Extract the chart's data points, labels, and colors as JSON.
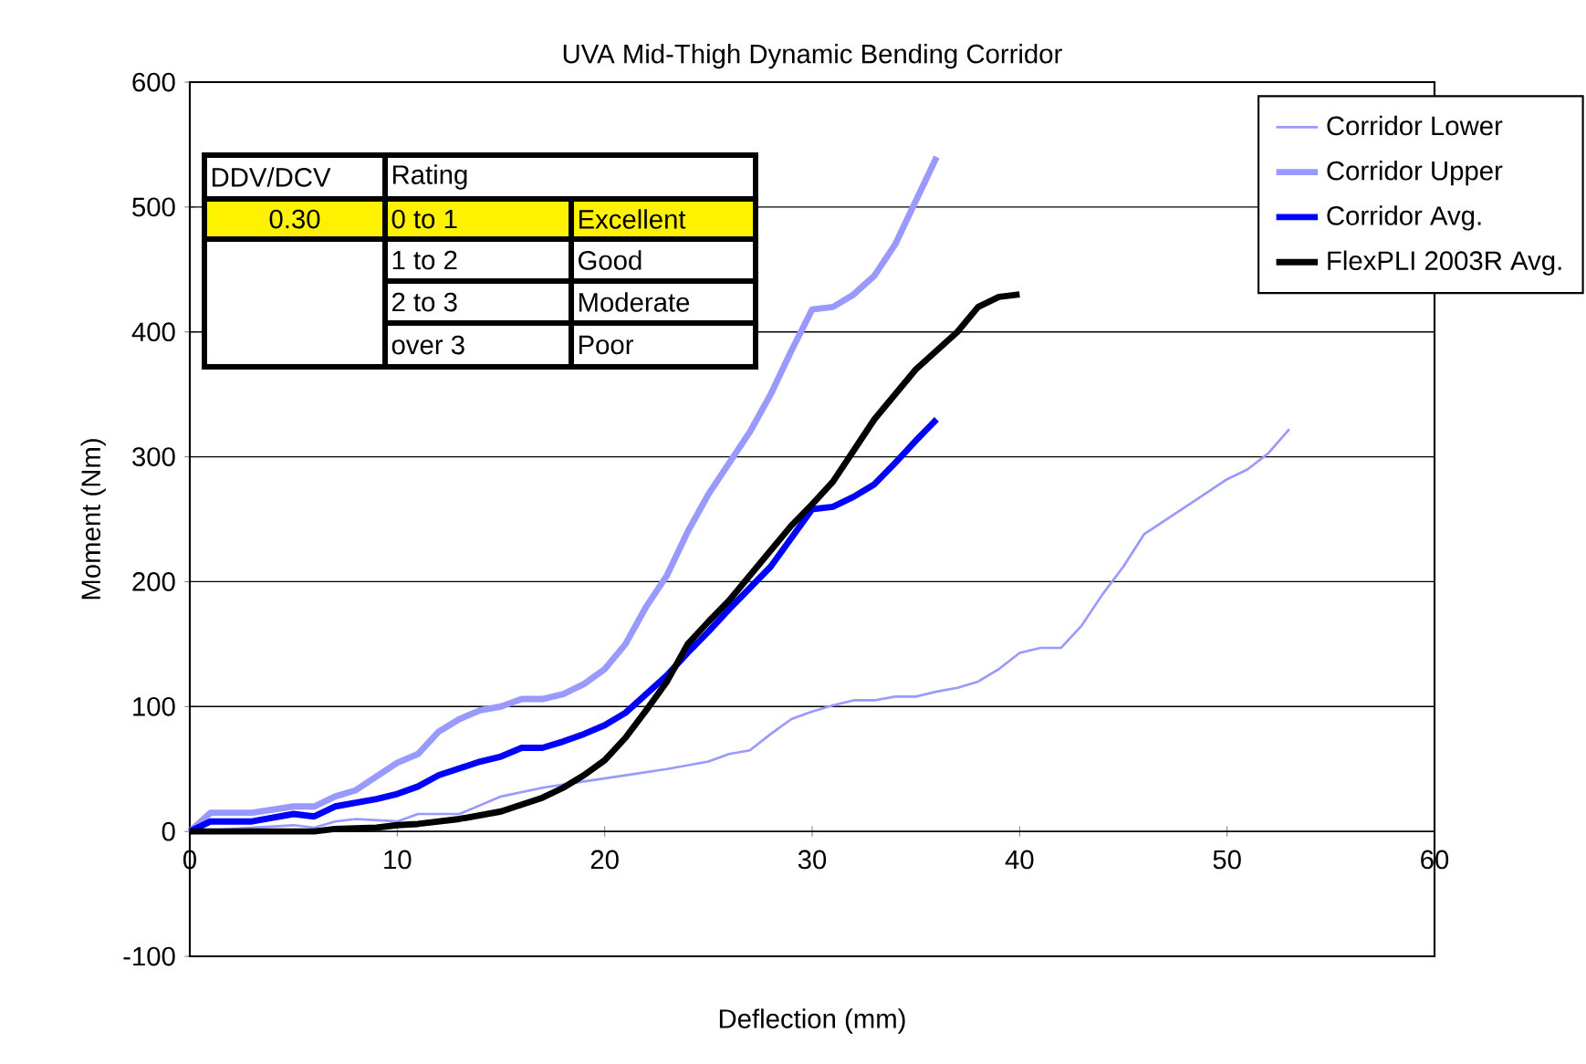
{
  "chart_data": {
    "type": "line",
    "title": "UVA Mid-Thigh Dynamic Bending Corridor",
    "xlabel": "Deflection (mm)",
    "ylabel": "Moment (Nm)",
    "xlim": [
      0,
      60
    ],
    "xticks": [
      0,
      10,
      20,
      30,
      40,
      50,
      60
    ],
    "ylim": [
      -100,
      600
    ],
    "yticks": [
      -100,
      0,
      100,
      200,
      300,
      400,
      500,
      600
    ],
    "grid": "y",
    "legend": "top right",
    "series": [
      {
        "name": "Corridor Lower",
        "color": "#9999ff",
        "x": [
          0,
          5,
          6,
          7,
          8,
          10,
          11,
          13,
          15,
          17,
          19,
          21,
          23,
          25,
          26,
          27,
          28,
          29,
          30,
          31,
          32,
          33,
          34,
          35,
          36,
          37,
          38,
          39,
          40,
          41,
          42,
          43,
          44,
          45,
          46,
          48,
          50,
          51,
          52,
          53
        ],
        "values": [
          0,
          5,
          3,
          8,
          10,
          8,
          14,
          14,
          28,
          35,
          40,
          45,
          50,
          56,
          62,
          65,
          78,
          90,
          96,
          101,
          105,
          105,
          108,
          108,
          112,
          115,
          120,
          130,
          143,
          147,
          147,
          165,
          190,
          212,
          238,
          260,
          282,
          290,
          303,
          322
        ]
      },
      {
        "name": "Corridor Upper",
        "color": "#9999ff",
        "x": [
          0,
          1,
          3,
          5,
          6,
          7,
          8,
          10,
          11,
          12,
          13,
          14,
          15,
          16,
          17,
          18,
          19,
          20,
          21,
          22,
          23,
          24,
          25,
          26,
          27,
          28,
          29,
          30,
          31,
          32,
          33,
          34,
          35,
          36
        ],
        "values": [
          0,
          15,
          15,
          20,
          20,
          28,
          33,
          55,
          62,
          80,
          90,
          97,
          100,
          106,
          106,
          110,
          118,
          130,
          150,
          180,
          205,
          240,
          270,
          295,
          320,
          350,
          385,
          418,
          420,
          430,
          445,
          470,
          505,
          540
        ]
      },
      {
        "name": "Corridor Avg.",
        "color": "#0000ff",
        "x": [
          0,
          1,
          3,
          5,
          6,
          7,
          9,
          10,
          11,
          12,
          14,
          15,
          16,
          17,
          18,
          19,
          20,
          21,
          22,
          23,
          24,
          25,
          26,
          27,
          28,
          29,
          30,
          31,
          32,
          33,
          34,
          35,
          36
        ],
        "values": [
          0,
          8,
          8,
          14,
          12,
          20,
          26,
          30,
          36,
          45,
          56,
          60,
          67,
          67,
          72,
          78,
          85,
          95,
          110,
          125,
          143,
          160,
          178,
          195,
          212,
          235,
          258,
          260,
          268,
          278,
          295,
          313,
          330
        ]
      },
      {
        "name": "FlexPLI 2003R Avg.",
        "color": "#000000",
        "x": [
          0,
          6,
          7,
          9,
          10,
          11,
          13,
          15,
          17,
          18,
          19,
          20,
          21,
          22,
          23,
          24,
          25,
          26,
          27,
          28,
          29,
          30,
          31,
          32,
          33,
          34,
          35,
          36,
          37,
          38,
          39,
          40
        ],
        "values": [
          0,
          0,
          2,
          3,
          5,
          6,
          10,
          16,
          27,
          35,
          45,
          57,
          75,
          97,
          120,
          150,
          168,
          185,
          205,
          225,
          245,
          262,
          280,
          305,
          330,
          350,
          370,
          385,
          400,
          420,
          428,
          430
        ]
      }
    ],
    "annotations": [
      "DDV/DCV",
      "Rating",
      "0.30",
      "0 to 1",
      "Excellent",
      "1 to 2",
      "Good",
      "2 to 3",
      "Moderate",
      "over 3",
      "Poor"
    ]
  }
}
